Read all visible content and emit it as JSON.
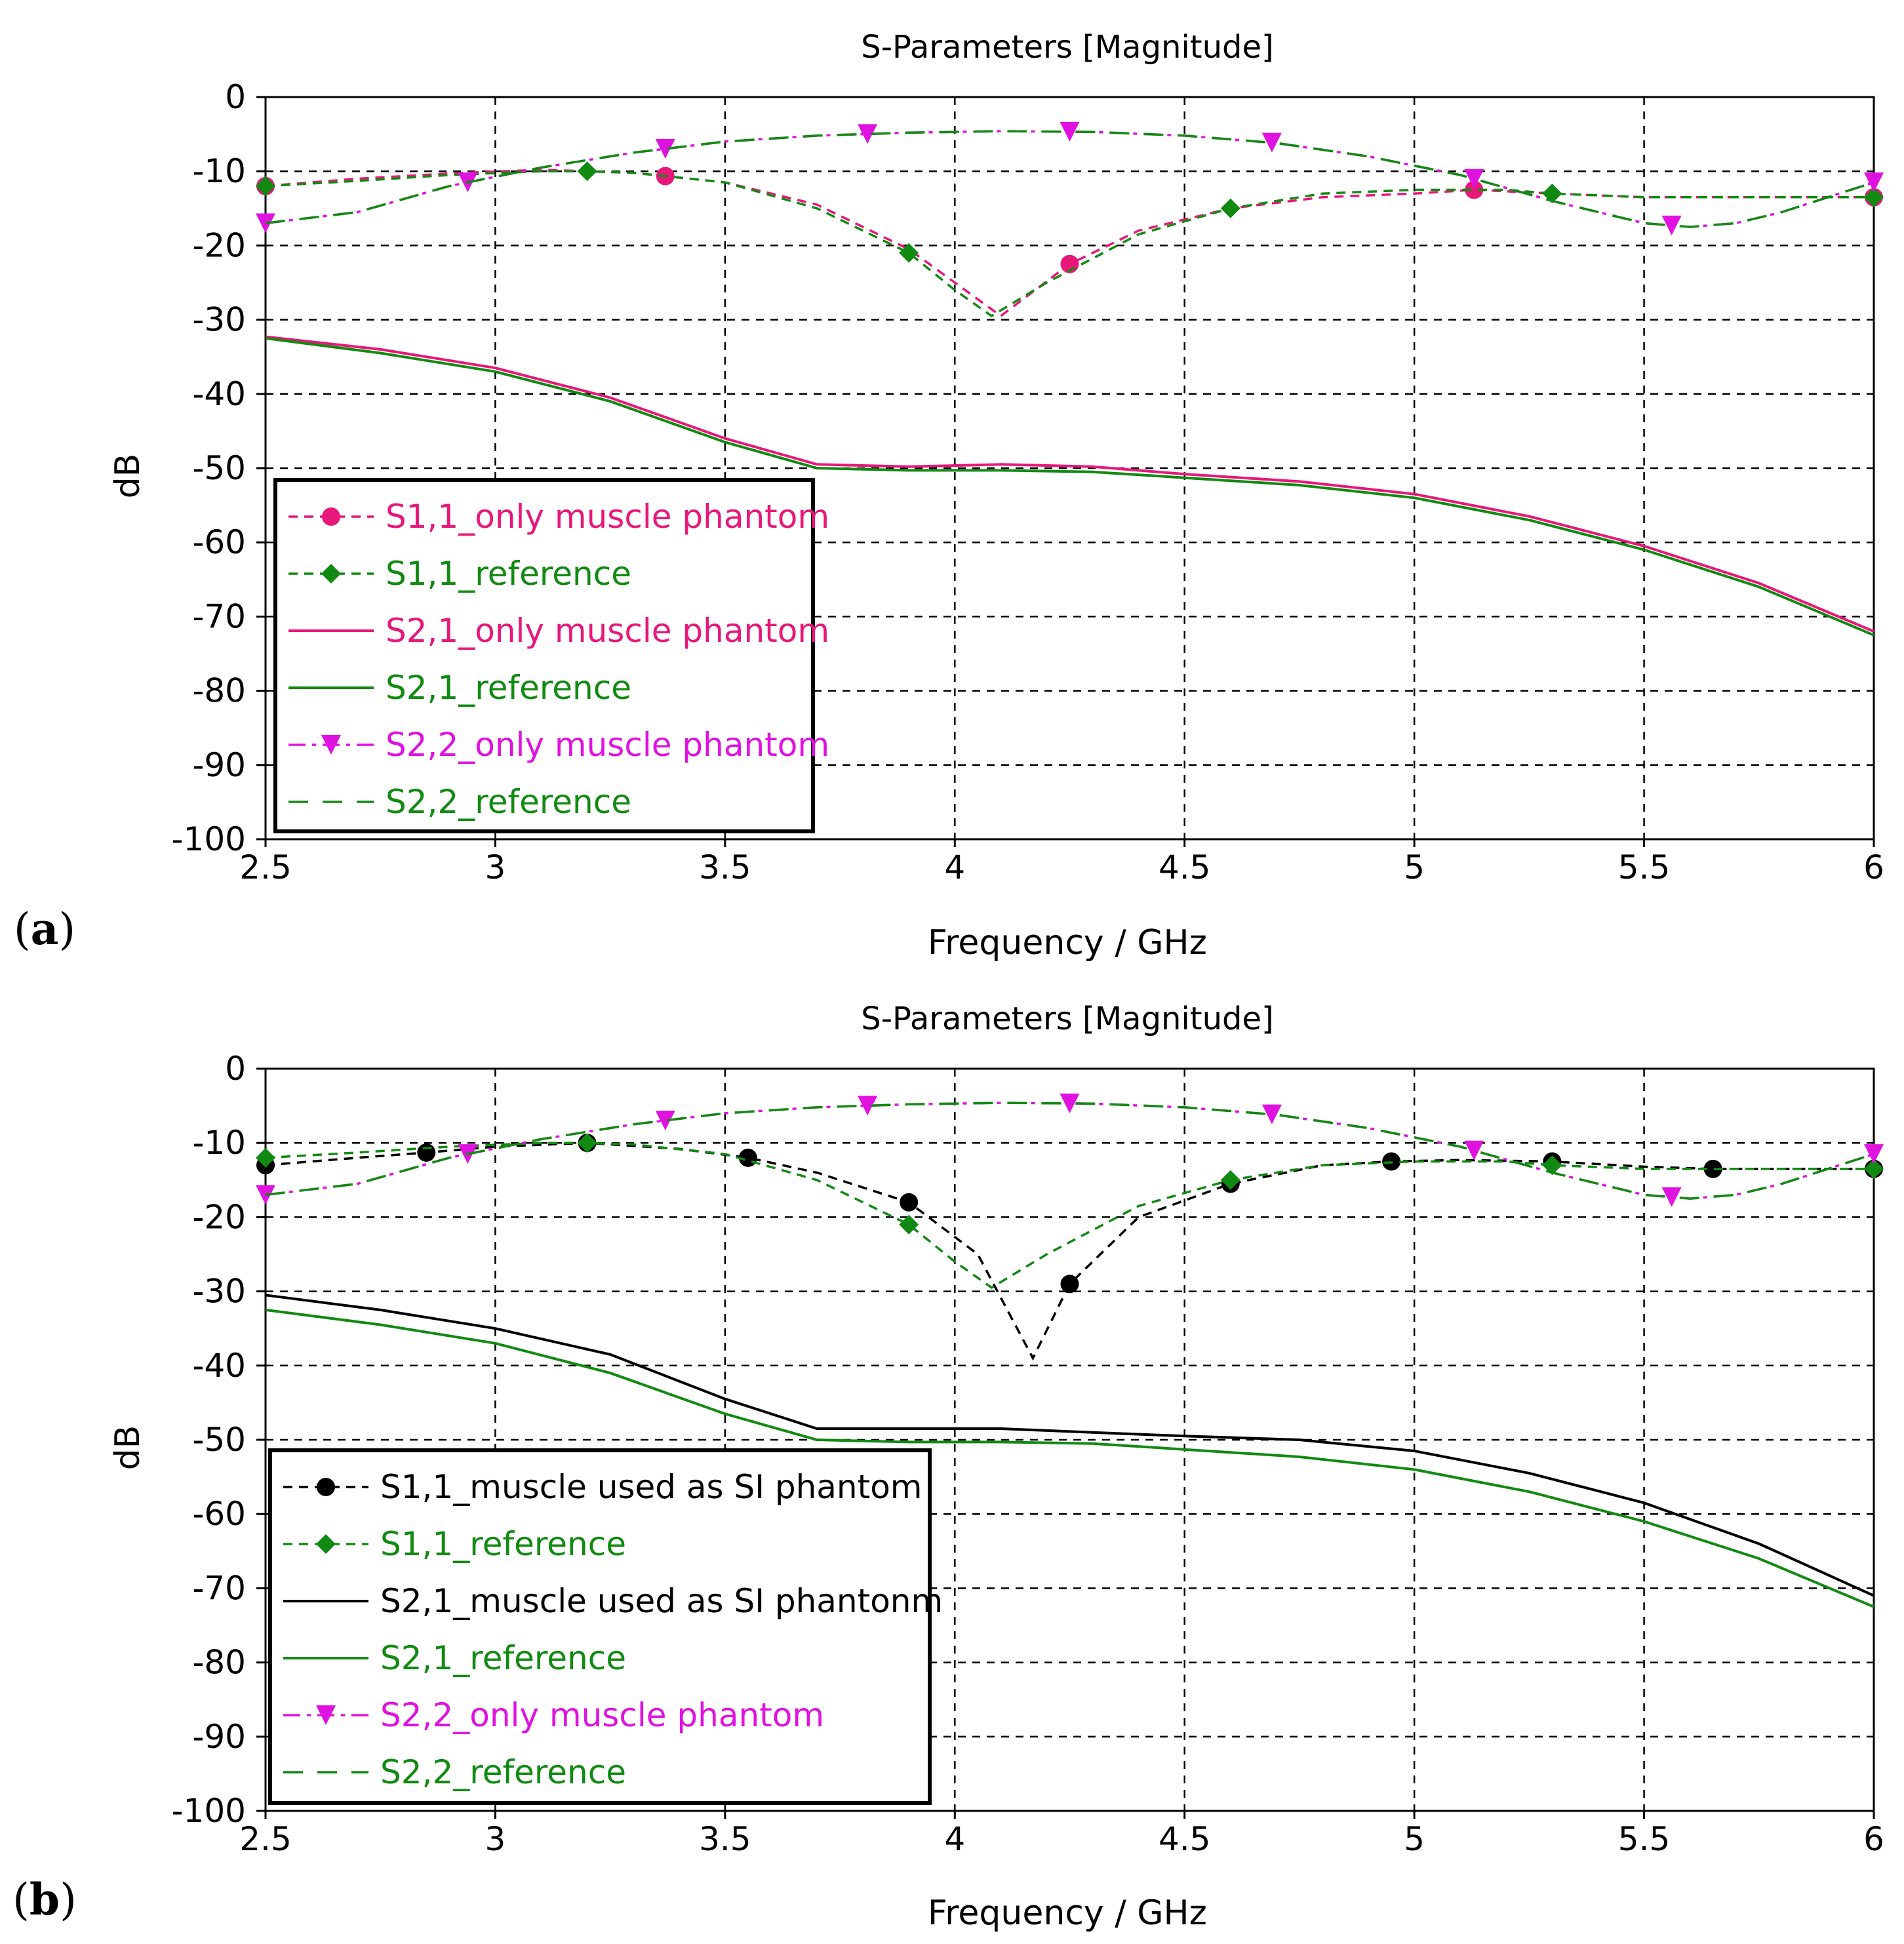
{
  "colors": {
    "s11_muscle_only": "#e8177a",
    "reference": "#118a11",
    "s21_muscle_only": "#e8177a",
    "s22_muscle_only": "#e012e0",
    "si_phantom": "#000000"
  },
  "chart_data": [
    {
      "panel_label": "(a)",
      "panel_letter": "a",
      "type": "line",
      "title": "S-Parameters [Magnitude]",
      "xlabel": "Frequency / GHz",
      "ylabel": "dB",
      "xlim": [
        2.5,
        6
      ],
      "ylim": [
        -100,
        0
      ],
      "grid": true,
      "legend_position": "lower-left",
      "x_ticks": [
        "2.5",
        "3",
        "3.5",
        "4",
        "4.5",
        "5",
        "5.5",
        "6"
      ],
      "y_ticks": [
        "0",
        "-10",
        "-20",
        "-30",
        "-40",
        "-50",
        "-60",
        "-70",
        "-80",
        "-90",
        "-100"
      ],
      "series": [
        {
          "name": "S1,1_only muscle phantom",
          "color_key": "s11_muscle_only",
          "dash": "dashed",
          "marker": "circle",
          "marker_x": [
            2.5,
            3.37,
            4.25,
            5.13,
            6.0
          ],
          "x": [
            2.5,
            2.7,
            2.9,
            3.1,
            3.3,
            3.5,
            3.7,
            3.9,
            4.0,
            4.1,
            4.25,
            4.4,
            4.6,
            4.8,
            5.0,
            5.13,
            5.3,
            5.5,
            5.7,
            5.9,
            6.0
          ],
          "y": [
            -12,
            -11,
            -10.3,
            -9.8,
            -10.2,
            -11.5,
            -14.5,
            -20.5,
            -25,
            -29.5,
            -22.5,
            -18,
            -15,
            -13.5,
            -13,
            -12.5,
            -13,
            -13.5,
            -13.5,
            -13.5,
            -13.5
          ]
        },
        {
          "name": "S1,1_reference",
          "color_key": "reference",
          "dash": "dashed",
          "marker": "diamond",
          "marker_x": [
            2.5,
            3.2,
            3.9,
            4.6,
            5.3,
            6.0
          ],
          "x": [
            2.5,
            2.7,
            2.9,
            3.1,
            3.2,
            3.3,
            3.5,
            3.7,
            3.9,
            4.0,
            4.08,
            4.2,
            4.4,
            4.6,
            4.8,
            5.0,
            5.2,
            5.3,
            5.5,
            5.7,
            5.9,
            6.0
          ],
          "y": [
            -12,
            -11.3,
            -10.5,
            -10,
            -10,
            -10.2,
            -11.5,
            -15,
            -21,
            -26,
            -29.5,
            -25,
            -18.5,
            -15,
            -13,
            -12.5,
            -12.5,
            -13,
            -13.5,
            -13.5,
            -13.5,
            -13.5
          ]
        },
        {
          "name": "S2,1_only muscle phantom",
          "color_key": "s21_muscle_only",
          "dash": "solid",
          "marker": "none",
          "x": [
            2.5,
            2.75,
            3.0,
            3.25,
            3.5,
            3.7,
            3.9,
            4.1,
            4.3,
            4.5,
            4.75,
            5.0,
            5.25,
            5.5,
            5.75,
            6.0
          ],
          "y": [
            -32.3,
            -34,
            -36.5,
            -40.5,
            -46,
            -49.5,
            -49.8,
            -49.5,
            -49.8,
            -50.8,
            -51.8,
            -53.5,
            -56.5,
            -60.5,
            -65.5,
            -72
          ]
        },
        {
          "name": "S2,1_reference",
          "color_key": "reference",
          "dash": "solid",
          "marker": "none",
          "x": [
            2.5,
            2.75,
            3.0,
            3.25,
            3.5,
            3.7,
            3.9,
            4.1,
            4.3,
            4.5,
            4.75,
            5.0,
            5.25,
            5.5,
            5.75,
            6.0
          ],
          "y": [
            -32.5,
            -34.5,
            -37,
            -41,
            -46.5,
            -50,
            -50.3,
            -50.3,
            -50.5,
            -51.3,
            -52.3,
            -54,
            -57,
            -61,
            -66,
            -72.5
          ]
        },
        {
          "name": "S2,2_only muscle phantom",
          "color_key": "s22_muscle_only",
          "dash": "dashdot",
          "marker": "triangle-down",
          "marker_x": [
            2.5,
            2.94,
            3.37,
            3.81,
            4.25,
            4.69,
            5.13,
            5.56,
            6.0
          ],
          "x": [
            2.5,
            2.7,
            2.9,
            3.1,
            3.3,
            3.5,
            3.7,
            3.9,
            4.1,
            4.3,
            4.5,
            4.7,
            4.9,
            5.1,
            5.3,
            5.5,
            5.6,
            5.7,
            5.8,
            5.9,
            6.0
          ],
          "y": [
            -17,
            -15.5,
            -12,
            -9.5,
            -7.5,
            -6,
            -5.2,
            -4.8,
            -4.6,
            -4.7,
            -5.2,
            -6.2,
            -8,
            -10.5,
            -14,
            -17,
            -17.5,
            -17,
            -15.5,
            -13.5,
            -11.5
          ]
        },
        {
          "name": "S2,2_reference",
          "color_key": "reference",
          "dash": "longdash",
          "marker": "none",
          "x": [
            2.5,
            2.7,
            2.9,
            3.1,
            3.3,
            3.5,
            3.7,
            3.9,
            4.1,
            4.3,
            4.5,
            4.7,
            4.9,
            5.1,
            5.3,
            5.5,
            5.6,
            5.7,
            5.8,
            5.9,
            6.0
          ],
          "y": [
            -17,
            -15.5,
            -12,
            -9.5,
            -7.5,
            -6,
            -5.2,
            -4.8,
            -4.6,
            -4.7,
            -5.2,
            -6.2,
            -8,
            -10.5,
            -14,
            -17,
            -17.5,
            -17,
            -15.5,
            -13.5,
            -11.5
          ]
        }
      ]
    },
    {
      "panel_label": "(b)",
      "panel_letter": "b",
      "type": "line",
      "title": "S-Parameters [Magnitude]",
      "xlabel": "Frequency / GHz",
      "ylabel": "dB",
      "xlim": [
        2.5,
        6
      ],
      "ylim": [
        -100,
        0
      ],
      "grid": true,
      "legend_position": "lower-left",
      "x_ticks": [
        "2.5",
        "3",
        "3.5",
        "4",
        "4.5",
        "5",
        "5.5",
        "6"
      ],
      "y_ticks": [
        "0",
        "-10",
        "-20",
        "-30",
        "-40",
        "-50",
        "-60",
        "-70",
        "-80",
        "-90",
        "-100"
      ],
      "series": [
        {
          "name": "S1,1_muscle used as SI phantom",
          "color_key": "si_phantom",
          "dash": "dashed",
          "marker": "circle",
          "marker_x": [
            2.5,
            2.85,
            3.2,
            3.55,
            3.9,
            4.25,
            4.6,
            4.95,
            5.3,
            5.65,
            6.0
          ],
          "x": [
            2.5,
            2.7,
            2.85,
            3.0,
            3.2,
            3.4,
            3.55,
            3.7,
            3.9,
            4.05,
            4.17,
            4.25,
            4.4,
            4.6,
            4.8,
            4.95,
            5.1,
            5.3,
            5.5,
            5.65,
            5.8,
            6.0
          ],
          "y": [
            -13,
            -12,
            -11.3,
            -10.5,
            -10,
            -10.8,
            -12,
            -14,
            -18,
            -25,
            -39,
            -29,
            -20,
            -15.5,
            -13,
            -12.5,
            -12.3,
            -12.5,
            -13.2,
            -13.5,
            -13.5,
            -13.5
          ]
        },
        {
          "name": "S1,1_reference",
          "color_key": "reference",
          "dash": "dashed",
          "marker": "diamond",
          "marker_x": [
            2.5,
            3.2,
            3.9,
            4.6,
            5.3,
            6.0
          ],
          "x": [
            2.5,
            2.7,
            2.9,
            3.1,
            3.2,
            3.3,
            3.5,
            3.7,
            3.9,
            4.0,
            4.08,
            4.2,
            4.4,
            4.6,
            4.8,
            5.0,
            5.2,
            5.3,
            5.5,
            5.7,
            5.9,
            6.0
          ],
          "y": [
            -12,
            -11.3,
            -10.5,
            -10,
            -10,
            -10.2,
            -11.5,
            -15,
            -21,
            -26,
            -29.5,
            -25,
            -18.5,
            -15,
            -13,
            -12.5,
            -12.5,
            -13,
            -13.5,
            -13.5,
            -13.5,
            -13.5
          ]
        },
        {
          "name": "S2,1_muscle used as SI phantonm",
          "color_key": "si_phantom",
          "dash": "solid",
          "marker": "none",
          "x": [
            2.5,
            2.75,
            3.0,
            3.25,
            3.5,
            3.7,
            3.9,
            4.1,
            4.3,
            4.5,
            4.75,
            5.0,
            5.25,
            5.5,
            5.75,
            6.0
          ],
          "y": [
            -30.5,
            -32.5,
            -35,
            -38.5,
            -44.5,
            -48.5,
            -48.5,
            -48.5,
            -49,
            -49.5,
            -50,
            -51.5,
            -54.5,
            -58.5,
            -64,
            -71
          ]
        },
        {
          "name": "S2,1_reference",
          "color_key": "reference",
          "dash": "solid",
          "marker": "none",
          "x": [
            2.5,
            2.75,
            3.0,
            3.25,
            3.5,
            3.7,
            3.9,
            4.1,
            4.3,
            4.5,
            4.75,
            5.0,
            5.25,
            5.5,
            5.75,
            6.0
          ],
          "y": [
            -32.5,
            -34.5,
            -37,
            -41,
            -46.5,
            -50,
            -50.3,
            -50.3,
            -50.5,
            -51.3,
            -52.3,
            -54,
            -57,
            -61,
            -66,
            -72.5
          ]
        },
        {
          "name": "S2,2_only muscle phantom",
          "color_key": "s22_muscle_only",
          "dash": "dashdot",
          "marker": "triangle-down",
          "marker_x": [
            2.5,
            2.94,
            3.37,
            3.81,
            4.25,
            4.69,
            5.13,
            5.56,
            6.0
          ],
          "x": [
            2.5,
            2.7,
            2.9,
            3.1,
            3.3,
            3.5,
            3.7,
            3.9,
            4.1,
            4.3,
            4.5,
            4.7,
            4.9,
            5.1,
            5.3,
            5.5,
            5.6,
            5.7,
            5.8,
            5.9,
            6.0
          ],
          "y": [
            -17,
            -15.5,
            -12,
            -9.5,
            -7.5,
            -6,
            -5.2,
            -4.8,
            -4.6,
            -4.7,
            -5.2,
            -6.2,
            -8,
            -10.5,
            -14,
            -17,
            -17.5,
            -17,
            -15.5,
            -13.5,
            -11.5
          ]
        },
        {
          "name": "S2,2_reference",
          "color_key": "reference",
          "dash": "longdash",
          "marker": "none",
          "x": [
            2.5,
            2.7,
            2.9,
            3.1,
            3.3,
            3.5,
            3.7,
            3.9,
            4.1,
            4.3,
            4.5,
            4.7,
            4.9,
            5.1,
            5.3,
            5.5,
            5.6,
            5.7,
            5.8,
            5.9,
            6.0
          ],
          "y": [
            -17,
            -15.5,
            -12,
            -9.5,
            -7.5,
            -6,
            -5.2,
            -4.8,
            -4.6,
            -4.7,
            -5.2,
            -6.2,
            -8,
            -10.5,
            -14,
            -17,
            -17.5,
            -17,
            -15.5,
            -13.5,
            -11.5
          ]
        }
      ]
    }
  ]
}
